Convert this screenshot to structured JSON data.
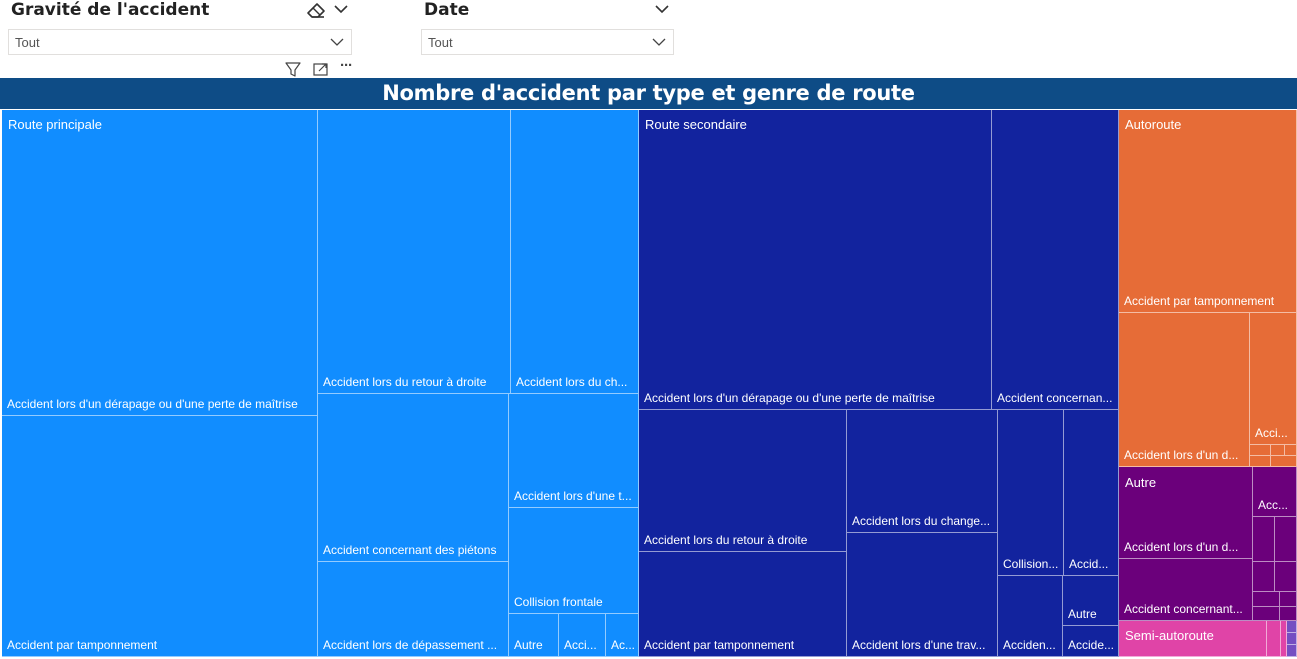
{
  "filters": [
    {
      "title": "Gravité de l'accident",
      "value": "Tout",
      "icons": [
        "eraser-icon",
        "chevron-down-icon"
      ]
    },
    {
      "title": "Date",
      "value": "Tout",
      "icons": [
        "chevron-down-icon"
      ]
    }
  ],
  "visual_toolbar": {
    "icons": [
      "filter-icon",
      "focus-mode-icon",
      "more-options-icon"
    ],
    "more_label": "···"
  },
  "chart_title": "Nombre d'accident par type et genre de route",
  "colors": {
    "header": "#0e4c86",
    "route_principale": "#118dff",
    "route_secondaire": "#12239e",
    "autoroute": "#e66c37",
    "autre": "#6b007b",
    "semi_autoroute": "#e044a7",
    "extra": "#744ec2"
  },
  "chart_data": {
    "type": "treemap",
    "title": "Nombre d'accident par type et genre de route",
    "groups": [
      {
        "name": "Route principale",
        "color": "#118dff",
        "visible_labels": [
          "Accident lors d'un dérapage ou d'une perte de maîtrise",
          "Accident par tamponnement",
          "Accident lors du retour à droite",
          "Accident concernant des piétons",
          "Accident lors de dépassement ...",
          "Accident lors du ch...",
          "Accident lors d'une t...",
          "Collision frontale",
          "Autre",
          "Acci...",
          "Ac..."
        ]
      },
      {
        "name": "Route secondaire",
        "color": "#12239e",
        "visible_labels": [
          "Accident lors d'un dérapage ou d'une perte de maîtrise",
          "Accident concernan...",
          "Accident lors du retour à droite",
          "Accident par tamponnement",
          "Accident lors du change...",
          "Accident lors d'une trav...",
          "Collision...",
          "Accid...",
          "Acciden...",
          "Autre",
          "Accide..."
        ]
      },
      {
        "name": "Autoroute",
        "color": "#e66c37",
        "visible_labels": [
          "Accident par tamponnement",
          "Accident lors d'un d...",
          "Acci..."
        ]
      },
      {
        "name": "Autre",
        "color": "#6b007b",
        "visible_labels": [
          "Accident lors d'un d...",
          "Accident concernant...",
          "Acc..."
        ]
      },
      {
        "name": "Semi-autoroute",
        "color": "#e044a7",
        "visible_labels": []
      }
    ]
  }
}
